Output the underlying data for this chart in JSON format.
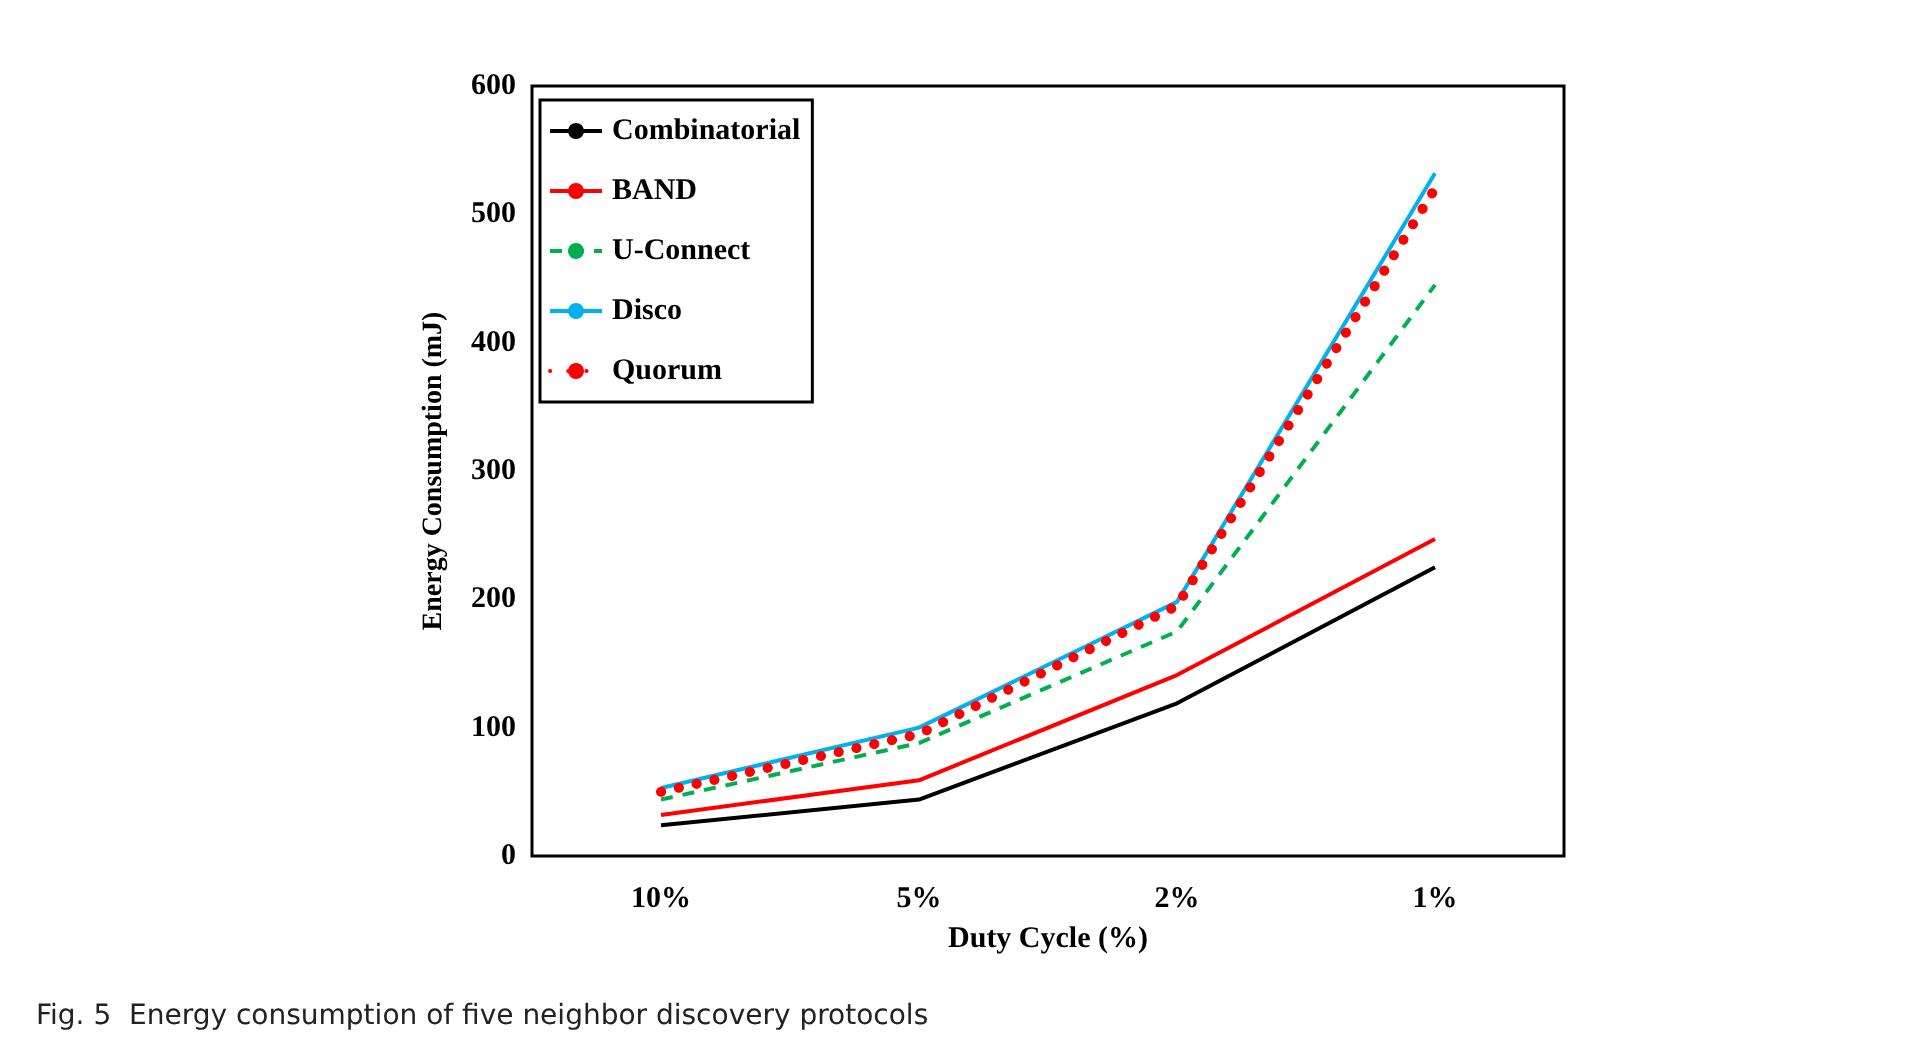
{
  "chart_data": {
    "type": "line",
    "xlabel": "Duty Cycle (%)",
    "ylabel": "Energy Consumption (mJ)",
    "categories": [
      "10%",
      "5%",
      "2%",
      "1%"
    ],
    "series": [
      {
        "name": "Combinatorial",
        "color": "#000000",
        "line_style": "solid",
        "values": [
          24,
          44,
          119,
          225
        ]
      },
      {
        "name": "BAND",
        "color": "#ff0000",
        "line_style": "solid",
        "values": [
          32,
          59,
          141,
          247
        ]
      },
      {
        "name": "U-Connect",
        "color": "#00b050",
        "line_style": "dashed",
        "values": [
          44,
          88,
          175,
          445
        ]
      },
      {
        "name": "Disco",
        "color": "#00b0f0",
        "line_style": "solid",
        "values": [
          53,
          100,
          198,
          532
        ]
      },
      {
        "name": "Quorum",
        "color": "#ff0000",
        "line_style": "dotted",
        "values": [
          50,
          95,
          195,
          520
        ]
      }
    ],
    "ylim": [
      0,
      600
    ],
    "yticks": [
      0,
      100,
      200,
      300,
      400,
      500,
      600
    ],
    "grid": false,
    "legend": "top left",
    "marker": "none",
    "annotations": [
      "Fig. 5  Energy consumption of five neighbor discovery protocols"
    ]
  }
}
